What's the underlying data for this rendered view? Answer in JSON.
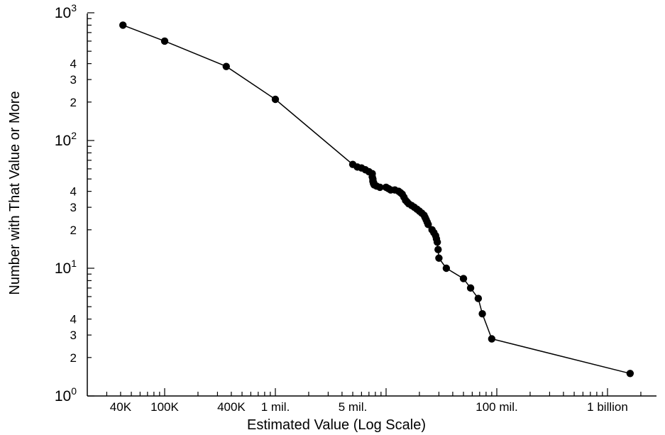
{
  "chart_data": {
    "type": "line",
    "xlabel": "Estimated Value (Log Scale)",
    "ylabel": "Number with That Value or More",
    "x_scale": "log",
    "y_scale": "log",
    "xlim": [
      10000,
      2000000000
    ],
    "ylim": [
      1,
      1000
    ],
    "x_tick_labels": [
      {
        "value": 40000,
        "label": "40K"
      },
      {
        "value": 100000,
        "label": "100K"
      },
      {
        "value": 400000,
        "label": "400K"
      },
      {
        "value": 1000000,
        "label": "1 mil."
      },
      {
        "value": 5000000,
        "label": "5 mil."
      },
      {
        "value": 100000000,
        "label": "100 mil."
      },
      {
        "value": 1000000000,
        "label": "1 billion"
      }
    ],
    "y_tick_labels": [
      {
        "value": 1,
        "base": "10",
        "exp": "0"
      },
      {
        "value": 2,
        "label": "2"
      },
      {
        "value": 3,
        "label": "3"
      },
      {
        "value": 4,
        "label": "4"
      },
      {
        "value": 10,
        "base": "10",
        "exp": "1"
      },
      {
        "value": 20,
        "label": "2"
      },
      {
        "value": 30,
        "label": "3"
      },
      {
        "value": 40,
        "label": "4"
      },
      {
        "value": 100,
        "base": "10",
        "exp": "2"
      },
      {
        "value": 200,
        "label": "2"
      },
      {
        "value": 300,
        "label": "3"
      },
      {
        "value": 400,
        "label": "4"
      },
      {
        "value": 1000,
        "base": "10",
        "exp": "3"
      }
    ],
    "grid": false,
    "line_color": "#000000",
    "marker_color": "#000000",
    "series": [
      {
        "x": [
          42000,
          100000,
          360000,
          1000000,
          5000000,
          5500000,
          6000000,
          6500000,
          7000000,
          7500000,
          7500000,
          7600000,
          7600000,
          7700000,
          7700000,
          7800000,
          8200000,
          8800000,
          10000000,
          10500000,
          11000000,
          12000000,
          13000000,
          13500000,
          14000000,
          14500000,
          15000000,
          15500000,
          16000000,
          17000000,
          18000000,
          19000000,
          20000000,
          21000000,
          22000000,
          22500000,
          23000000,
          23500000,
          24000000,
          26000000,
          27000000,
          28000000,
          28500000,
          29000000,
          29500000,
          30000000,
          35000000,
          50000000,
          58000000,
          68000000,
          74000000,
          90000000,
          1600000000
        ],
        "y": [
          800,
          600,
          380,
          210,
          65,
          62,
          61,
          59,
          57,
          55,
          52,
          50,
          48,
          47,
          46,
          45,
          44,
          43,
          43,
          42,
          41,
          41,
          40,
          39,
          38,
          36,
          34,
          33,
          32,
          31,
          30,
          29,
          28,
          27,
          26,
          25,
          24,
          23,
          22,
          20,
          19,
          18,
          17,
          16,
          14,
          12,
          10,
          8.3,
          7,
          5.8,
          4.4,
          2.8,
          1.5
        ]
      }
    ]
  }
}
